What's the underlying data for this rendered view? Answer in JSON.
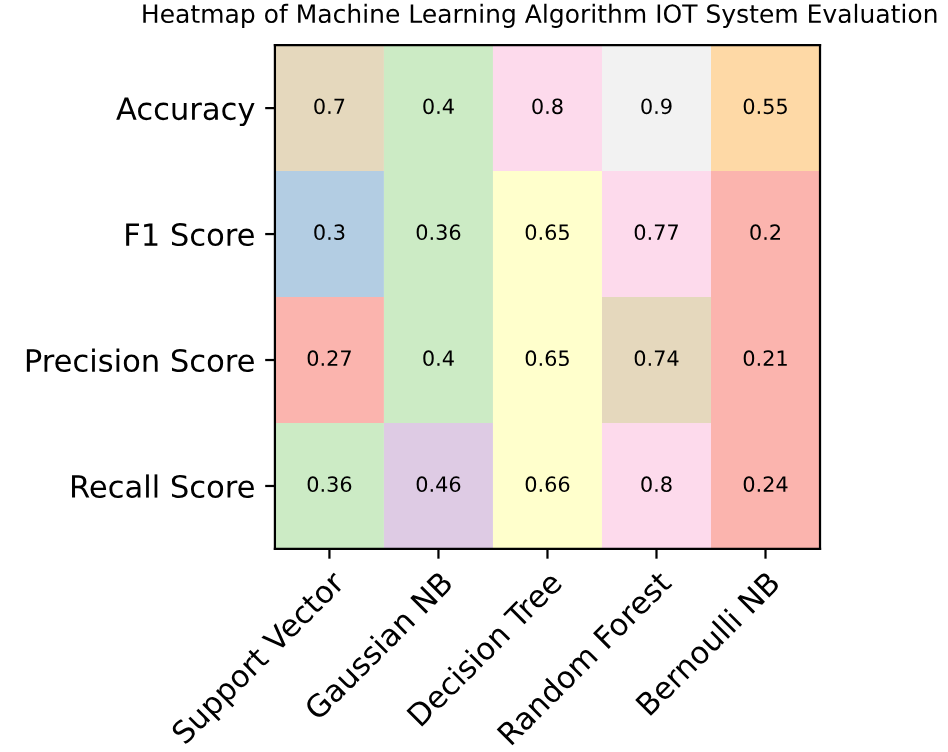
{
  "chart_data": {
    "type": "heatmap",
    "title": "Heatmap of Machine Learning Algorithm IOT System Evaluation",
    "categories": [
      "Support Vector",
      "Gaussian NB",
      "Decision Tree",
      "Random Forest",
      "Bernoulli NB"
    ],
    "y_categories": [
      "Accuracy",
      "F1 Score",
      "Precision Score",
      "Recall Score"
    ],
    "cells": [
      [
        0.7,
        0.4,
        0.8,
        0.9,
        0.55
      ],
      [
        0.3,
        0.36,
        0.65,
        0.77,
        0.2
      ],
      [
        0.27,
        0.4,
        0.65,
        0.74,
        0.21
      ],
      [
        0.36,
        0.46,
        0.66,
        0.8,
        0.24
      ]
    ],
    "data_labels": true
  }
}
